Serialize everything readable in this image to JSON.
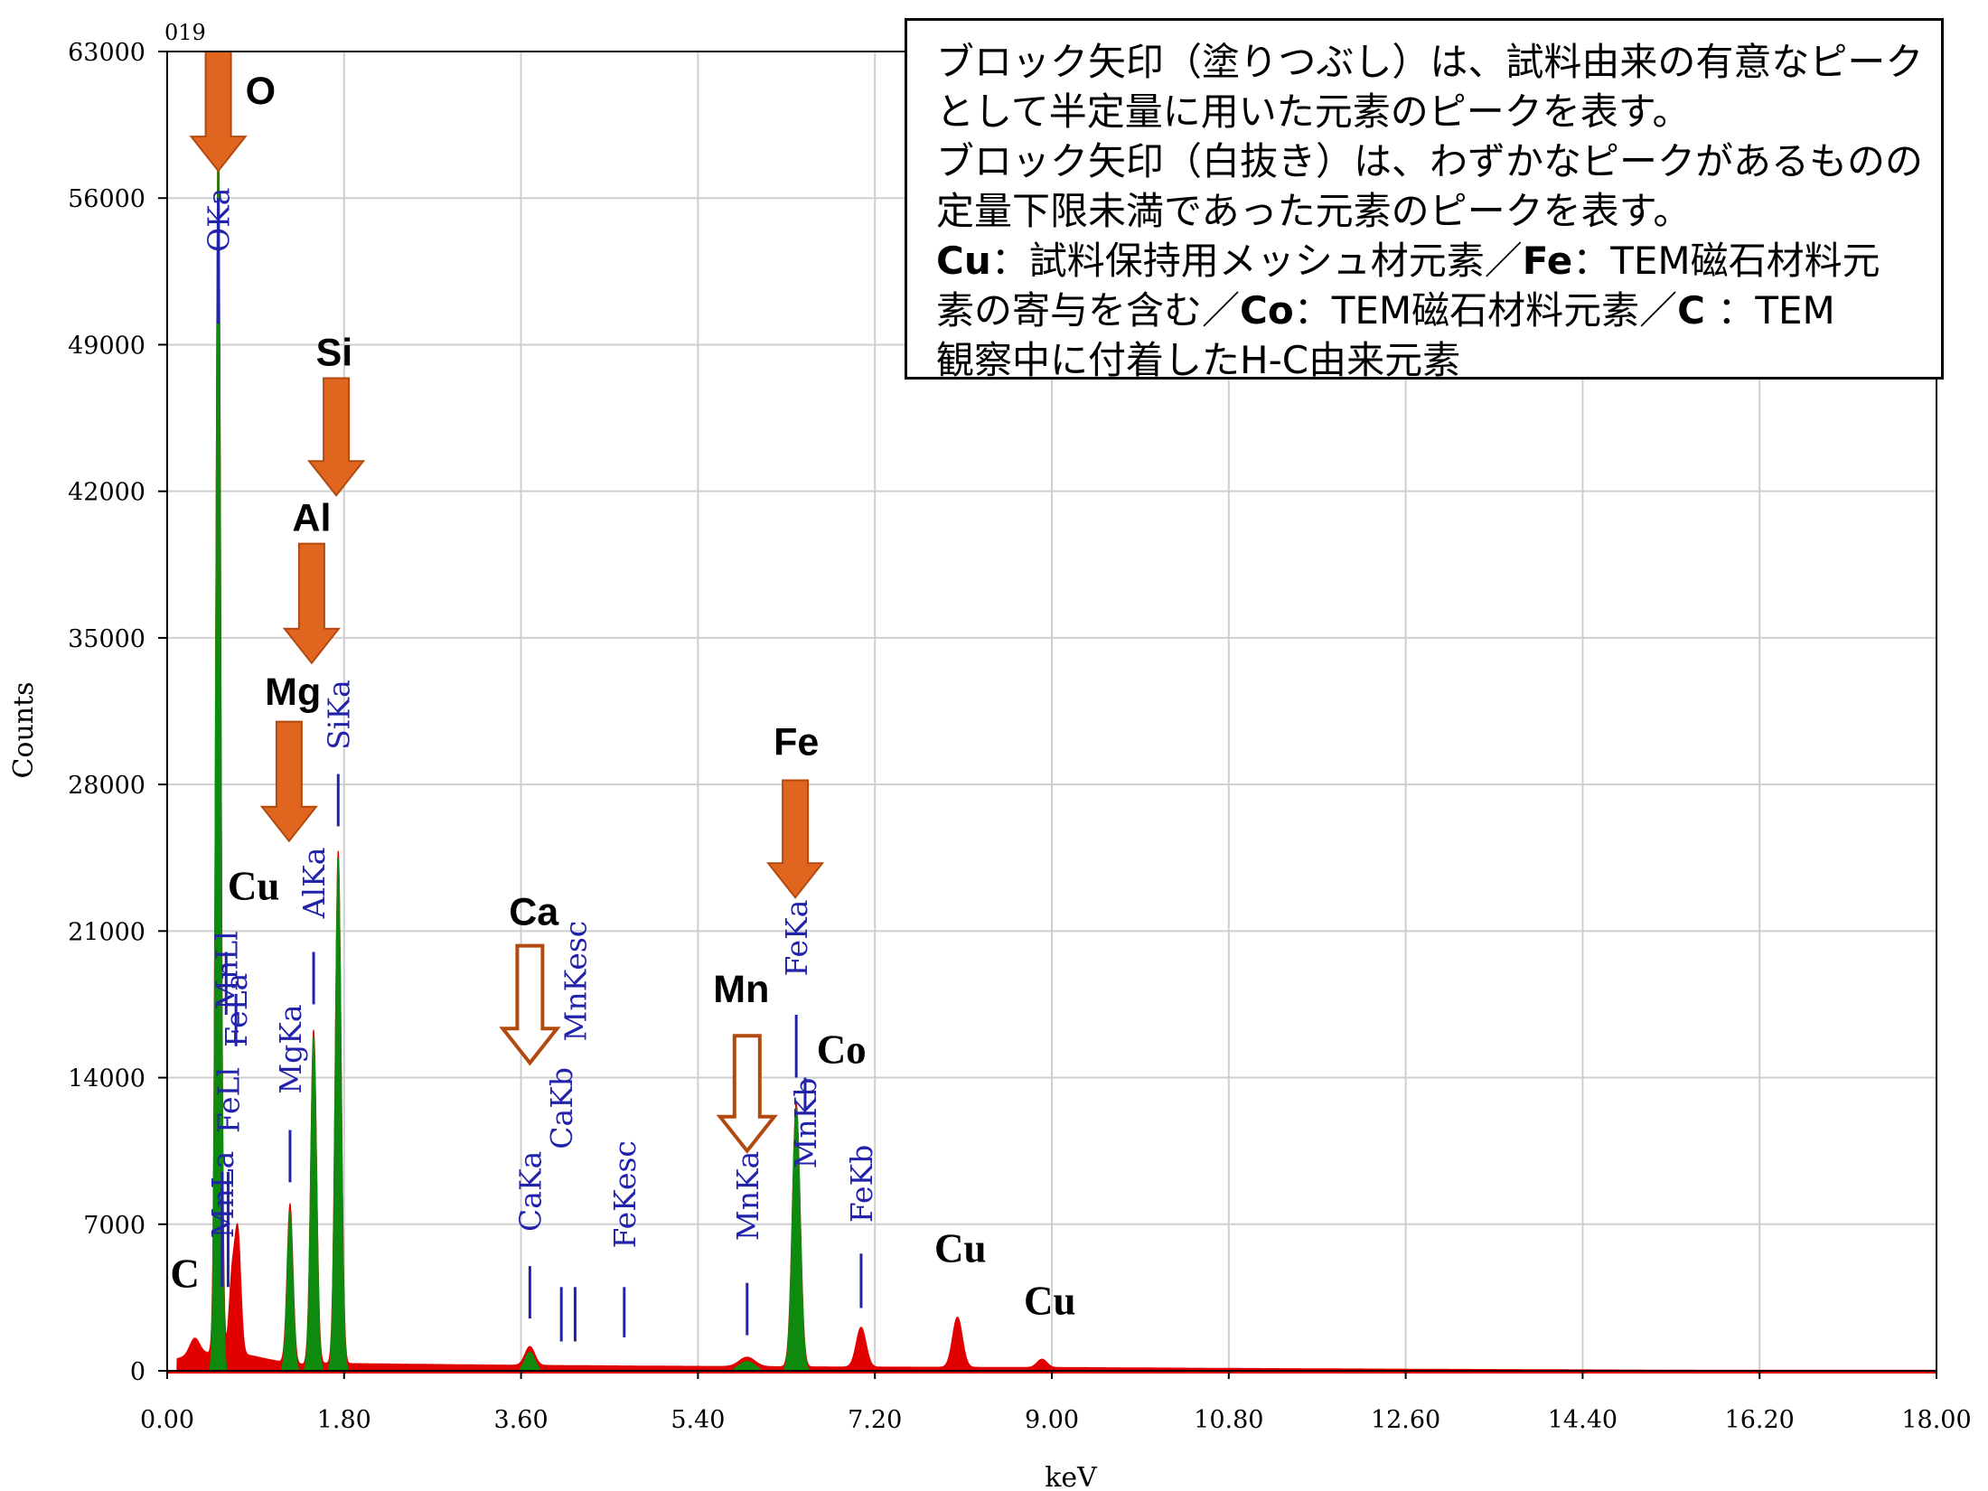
{
  "chart_data": {
    "type": "area",
    "spectrum_id": "019",
    "xlabel": "keV",
    "ylabel": "Counts",
    "xlim": [
      0,
      18
    ],
    "ylim": [
      0,
      63000
    ],
    "x_ticks": [
      "0.00",
      "1.80",
      "3.60",
      "5.40",
      "7.20",
      "9.00",
      "10.80",
      "12.60",
      "14.40",
      "16.20",
      "18.00"
    ],
    "y_ticks": [
      "0",
      "7000",
      "14000",
      "21000",
      "28000",
      "35000",
      "42000",
      "49000",
      "56000",
      "63000"
    ],
    "grid": true,
    "colors": {
      "background_spectrum": "#e00000",
      "identified_peaks": "#0e8a0e",
      "markers": "#2222aa",
      "arrow": "#e06620",
      "arrow_outline": "#b24a10"
    },
    "spectrum_peaks": [
      {
        "center": 0.28,
        "height": 800,
        "width": 0.05,
        "layer": "red"
      },
      {
        "center": 0.52,
        "height": 59500,
        "width": 0.025,
        "layer": "green"
      },
      {
        "center": 0.66,
        "height": 3500,
        "width": 0.03,
        "layer": "red"
      },
      {
        "center": 0.72,
        "height": 5600,
        "width": 0.03,
        "layer": "red"
      },
      {
        "center": 1.25,
        "height": 7600,
        "width": 0.03,
        "layer": "green"
      },
      {
        "center": 1.49,
        "height": 16000,
        "width": 0.03,
        "layer": "green"
      },
      {
        "center": 1.74,
        "height": 24500,
        "width": 0.03,
        "layer": "green"
      },
      {
        "center": 3.69,
        "height": 900,
        "width": 0.05,
        "layer": "green"
      },
      {
        "center": 5.9,
        "height": 450,
        "width": 0.08,
        "layer": "green"
      },
      {
        "center": 6.4,
        "height": 12600,
        "width": 0.04,
        "layer": "green"
      },
      {
        "center": 7.06,
        "height": 1900,
        "width": 0.05,
        "layer": "red"
      },
      {
        "center": 8.04,
        "height": 2400,
        "width": 0.05,
        "layer": "red"
      },
      {
        "center": 8.9,
        "height": 400,
        "width": 0.05,
        "layer": "red"
      }
    ],
    "peak_labels": [
      {
        "text": "OKa",
        "x": 0.52,
        "top": 56500,
        "line_from": 50000,
        "line_to": 56000
      },
      {
        "text": "MnLa",
        "x": 0.56,
        "top": 10500,
        "line_from": 4000,
        "line_to": 9500
      },
      {
        "text": "FeLl",
        "x": 0.62,
        "top": 14500,
        "line_from": 4000,
        "line_to": 9500
      },
      {
        "text": "MnLl",
        "x": 0.6,
        "top": 21000,
        "line_from": 17000,
        "line_to": 20000
      },
      {
        "text": "FeLa",
        "x": 0.7,
        "top": 19000,
        "line_from": 15500,
        "line_to": 18000
      },
      {
        "text": "MgKa",
        "x": 1.25,
        "top": 17500,
        "line_from": 9000,
        "line_to": 11500
      },
      {
        "text": "AlKa",
        "x": 1.49,
        "top": 25000,
        "line_from": 17500,
        "line_to": 20000
      },
      {
        "text": "SiKa",
        "x": 1.74,
        "top": 33000,
        "line_from": 26000,
        "line_to": 28500
      },
      {
        "text": "CaKa",
        "x": 3.69,
        "top": 10500,
        "line_from": 2500,
        "line_to": 5000
      },
      {
        "text": "CaKb",
        "x": 4.01,
        "top": 14500,
        "line_from": 1400,
        "line_to": 4000
      },
      {
        "text": "MnKesc",
        "x": 4.15,
        "top": 21500,
        "line_from": 1400,
        "line_to": 4000
      },
      {
        "text": "FeKesc",
        "x": 4.65,
        "top": 11000,
        "line_from": 1600,
        "line_to": 4000
      },
      {
        "text": "MnKa",
        "x": 5.9,
        "top": 10500,
        "line_from": 1700,
        "line_to": 4200
      },
      {
        "text": "MnKb",
        "x": 6.49,
        "top": 14000,
        "line_from": 12500,
        "line_to": 14000
      },
      {
        "text": "FeKa",
        "x": 6.4,
        "top": 22500,
        "line_from": 14000,
        "line_to": 17000
      },
      {
        "text": "FeKb",
        "x": 7.06,
        "top": 10800,
        "line_from": 3000,
        "line_to": 5600
      }
    ],
    "element_labels": [
      {
        "text": "O",
        "x": 0.95,
        "y": 60500,
        "style": "sans"
      },
      {
        "text": "Si",
        "x": 1.7,
        "y": 48000,
        "style": "sans"
      },
      {
        "text": "Al",
        "x": 1.47,
        "y": 40100,
        "style": "sans"
      },
      {
        "text": "Mg",
        "x": 1.28,
        "y": 31800,
        "style": "sans"
      },
      {
        "text": "Cu",
        "x": 0.88,
        "y": 22500,
        "style": "serif"
      },
      {
        "text": "Fe",
        "x": 6.4,
        "y": 29400,
        "style": "sans"
      },
      {
        "text": "Ca",
        "x": 3.73,
        "y": 21300,
        "style": "sans"
      },
      {
        "text": "Mn",
        "x": 5.84,
        "y": 17600,
        "style": "sans"
      },
      {
        "text": "Co",
        "x": 6.86,
        "y": 14700,
        "style": "serif"
      },
      {
        "text": "C",
        "x": 0.18,
        "y": 4000,
        "style": "serif"
      },
      {
        "text": "Cu",
        "x": 8.07,
        "y": 5200,
        "style": "serif"
      },
      {
        "text": "Cu",
        "x": 8.98,
        "y": 2700,
        "style": "serif"
      }
    ],
    "arrows": [
      {
        "element": "O",
        "x": 0.52,
        "top": 63000,
        "bottom": 57300,
        "style": "filled"
      },
      {
        "element": "Si",
        "x": 1.72,
        "top": 47400,
        "bottom": 41800,
        "style": "filled"
      },
      {
        "element": "Al",
        "x": 1.47,
        "top": 39500,
        "bottom": 33800,
        "style": "filled"
      },
      {
        "element": "Mg",
        "x": 1.24,
        "top": 31000,
        "bottom": 25300,
        "style": "filled"
      },
      {
        "element": "Fe",
        "x": 6.39,
        "top": 28200,
        "bottom": 22600,
        "style": "filled"
      },
      {
        "element": "Ca",
        "x": 3.69,
        "top": 20300,
        "bottom": 14700,
        "style": "outline"
      },
      {
        "element": "Mn",
        "x": 5.9,
        "top": 16000,
        "bottom": 10500,
        "style": "outline"
      }
    ]
  },
  "note": {
    "line1": "ブロック矢印（塗りつぶし）は、試料由来の有意なピーク",
    "line2": "として半定量に用いた元素のピークを表す。",
    "line3": "ブロック矢印（白抜き）は、わずかなピークがあるものの",
    "line4": "定量下限未満であった元素のピークを表す。",
    "cu_bold": "Cu",
    "cu_text": "：試料保持用メッシュ材元素／",
    "fe_bold": "Fe",
    "fe_text": "：TEM磁石材料元",
    "line6_start": "素の寄与を含む／",
    "co_bold": "Co",
    "co_text": "：TEM磁石材料元素／",
    "c_bold": "C",
    "c_text": " ：TEM",
    "line7": "観察中に付着したH-C由来元素"
  }
}
